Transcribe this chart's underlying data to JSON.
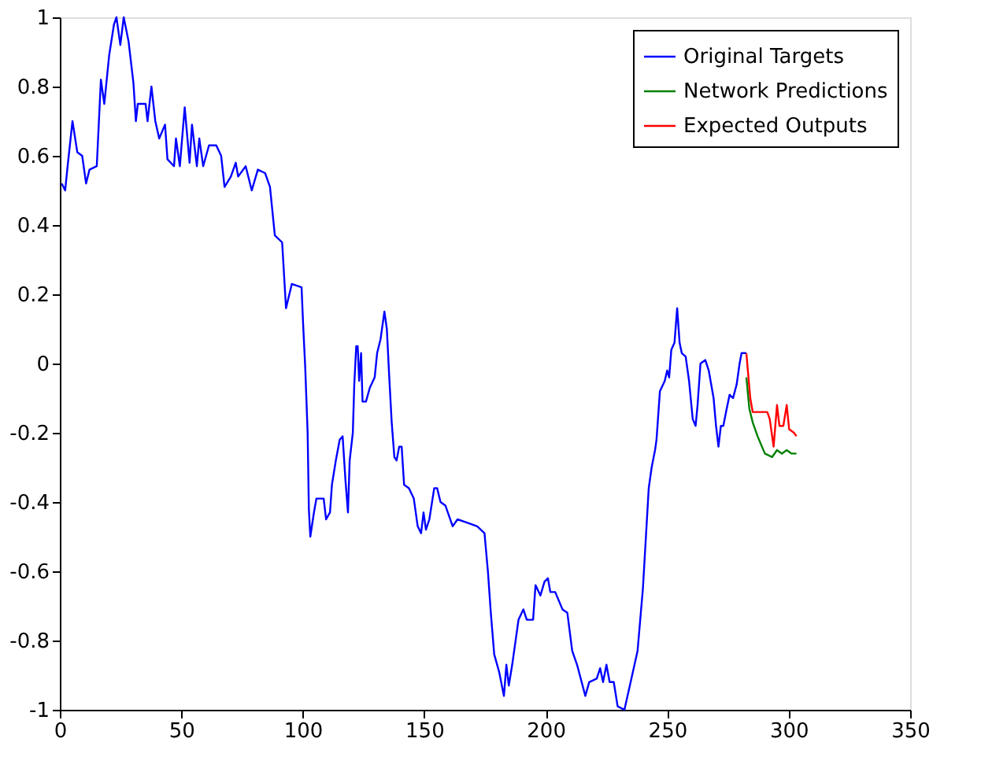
{
  "chart_data": {
    "type": "line",
    "xlim": [
      0,
      350
    ],
    "ylim": [
      -1,
      1
    ],
    "xticks": [
      0,
      50,
      100,
      150,
      200,
      250,
      300,
      350
    ],
    "yticks": [
      -1,
      -0.8,
      -0.6,
      -0.4,
      -0.2,
      0,
      0.2,
      0.4,
      0.6,
      0.8,
      1
    ],
    "grid": false,
    "legend": "top right",
    "line_style": "solid",
    "marker": "none",
    "series": [
      {
        "name": "Original Targets",
        "color": "#0000ff",
        "x": [
          0.8,
          2.2,
          3.2,
          5.2,
          7.2,
          9.2,
          10.8,
          12.2,
          15.2,
          16.9,
          18.3,
          20.3,
          22.3,
          23.3,
          24.9,
          26.3,
          28.3,
          30.3,
          31.3,
          32.1,
          35.3,
          36.1,
          37.7,
          39.3,
          40.9,
          43.3,
          44.3,
          47,
          47.8,
          49.4,
          51.4,
          53.4,
          54.4,
          56.4,
          57.4,
          59,
          61.4,
          64.4,
          66.4,
          67.8,
          70.4,
          72.4,
          73.4,
          76.5,
          79,
          81.5,
          84.5,
          86.5,
          88.5,
          91.5,
          93.1,
          95.5,
          99.5,
          100.1,
          101,
          102,
          102.5,
          103.1,
          104.6,
          105.6,
          108.6,
          109.6,
          111.2,
          112,
          113.6,
          115.2,
          116.4,
          117.6,
          118.6,
          119.3,
          120.6,
          121.2,
          122,
          122.6,
          123.2,
          124,
          124.6,
          126,
          127.6,
          129.6,
          130.6,
          132,
          133.6,
          134.6,
          135.6,
          136.6,
          137.7,
          138.6,
          139.7,
          140.7,
          141.7,
          143.7,
          145.7,
          147.3,
          148.7,
          149.7,
          150.7,
          152.1,
          154.1,
          155.3,
          156.7,
          158.7,
          161.7,
          163.7,
          167.8,
          171.8,
          174.8,
          176.2,
          177.4,
          178.8,
          180.8,
          182.8,
          183.8,
          184.8,
          186.2,
          187.2,
          188.8,
          190.8,
          192.2,
          194.8,
          195.8,
          197.8,
          199.5,
          200.9,
          201.9,
          203.9,
          206.9,
          208.9,
          210.9,
          212.9,
          216.3,
          217.9,
          221,
          222.4,
          223.6,
          225,
          226.3,
          228,
          229.6,
          232.4,
          237.8,
          240,
          242.4,
          243.6,
          245,
          245.6,
          247,
          249,
          250,
          250.8,
          251.7,
          253,
          254.1,
          255.1,
          256,
          257.6,
          259,
          260.5,
          261.7,
          262.5,
          263.7,
          265.7,
          267.1,
          269.1,
          270.1,
          271.1,
          272.1,
          273.1,
          274.5,
          275.7,
          277.1,
          278.6,
          279.8,
          280.6,
          282.6
        ],
        "values": [
          0.52,
          0.5,
          0.57,
          0.7,
          0.61,
          0.6,
          0.52,
          0.56,
          0.57,
          0.82,
          0.75,
          0.89,
          0.98,
          1.0,
          0.92,
          1.0,
          0.93,
          0.81,
          0.7,
          0.75,
          0.75,
          0.7,
          0.8,
          0.7,
          0.65,
          0.69,
          0.59,
          0.57,
          0.65,
          0.57,
          0.74,
          0.58,
          0.69,
          0.57,
          0.65,
          0.57,
          0.63,
          0.63,
          0.6,
          0.51,
          0.54,
          0.58,
          0.54,
          0.57,
          0.5,
          0.56,
          0.55,
          0.51,
          0.37,
          0.35,
          0.16,
          0.23,
          0.22,
          0.12,
          -0.01,
          -0.2,
          -0.42,
          -0.5,
          -0.43,
          -0.39,
          -0.39,
          -0.45,
          -0.43,
          -0.35,
          -0.28,
          -0.22,
          -0.21,
          -0.34,
          -0.43,
          -0.28,
          -0.2,
          -0.06,
          0.05,
          0.05,
          -0.05,
          0.03,
          -0.11,
          -0.11,
          -0.07,
          -0.04,
          0.03,
          0.07,
          0.15,
          0.1,
          -0.04,
          -0.17,
          -0.27,
          -0.28,
          -0.24,
          -0.24,
          -0.35,
          -0.36,
          -0.39,
          -0.47,
          -0.49,
          -0.43,
          -0.48,
          -0.45,
          -0.36,
          -0.36,
          -0.4,
          -0.41,
          -0.47,
          -0.45,
          -0.46,
          -0.47,
          -0.49,
          -0.6,
          -0.72,
          -0.84,
          -0.89,
          -0.96,
          -0.87,
          -0.93,
          -0.87,
          -0.82,
          -0.74,
          -0.71,
          -0.74,
          -0.74,
          -0.64,
          -0.67,
          -0.63,
          -0.62,
          -0.66,
          -0.66,
          -0.71,
          -0.72,
          -0.83,
          -0.87,
          -0.96,
          -0.92,
          -0.91,
          -0.88,
          -0.92,
          -0.87,
          -0.92,
          -0.92,
          -0.99,
          -1.0,
          -0.83,
          -0.65,
          -0.36,
          -0.3,
          -0.25,
          -0.22,
          -0.08,
          -0.05,
          -0.02,
          -0.04,
          0.04,
          0.06,
          0.16,
          0.06,
          0.03,
          0.02,
          -0.05,
          -0.16,
          -0.18,
          -0.12,
          0.0,
          0.01,
          -0.02,
          -0.1,
          -0.18,
          -0.24,
          -0.18,
          -0.18,
          -0.13,
          -0.09,
          -0.1,
          -0.06,
          0.0,
          0.03,
          0.03
        ]
      },
      {
        "name": "Network Predictions",
        "color": "#008000",
        "x": [
          282.6,
          283.8,
          285.2,
          287.2,
          290.2,
          293.2,
          295.2,
          297.2,
          299.2,
          301.2,
          303.2
        ],
        "values": [
          -0.04,
          -0.13,
          -0.17,
          -0.21,
          -0.26,
          -0.27,
          -0.25,
          -0.26,
          -0.25,
          -0.26,
          -0.26
        ]
      },
      {
        "name": "Expected Outputs",
        "color": "#ff0000",
        "x": [
          282.6,
          283.2,
          284.2,
          285.2,
          291.2,
          292.2,
          293.8,
          295.2,
          296.2,
          297.8,
          299.2,
          300.2,
          302.2,
          303.2
        ],
        "values": [
          0.03,
          -0.02,
          -0.1,
          -0.14,
          -0.14,
          -0.16,
          -0.24,
          -0.12,
          -0.18,
          -0.18,
          -0.12,
          -0.19,
          -0.2,
          -0.21
        ]
      }
    ]
  }
}
